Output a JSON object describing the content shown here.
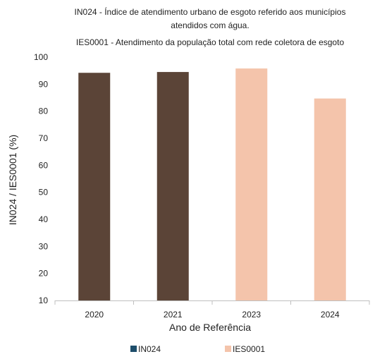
{
  "chart_data": {
    "type": "bar",
    "title_lines": [
      "IN024 - Índice de atendimento urbano de esgoto referido aos municípios",
      "atendidos com água."
    ],
    "subtitle": "IES0001 - Atendimento da população total com rede coletora de esgoto",
    "xlabel": "Ano de Referência",
    "ylabel": "IN024 / IES0001 (%)",
    "ylim": [
      10,
      100
    ],
    "yticks": [
      10,
      20,
      30,
      40,
      50,
      60,
      70,
      80,
      90,
      100
    ],
    "categories": [
      "2020",
      "2021",
      "2023",
      "2024"
    ],
    "values": [
      94.2,
      94.5,
      95.8,
      84.7
    ],
    "bar_series": [
      "IN024",
      "IN024",
      "IES0001",
      "IES0001"
    ],
    "series": [
      {
        "name": "IN024",
        "color": "#5b4437",
        "legend_color": "#1e4e6b"
      },
      {
        "name": "IES0001",
        "color": "#f4c4ab",
        "legend_color": "#f4c4ab"
      }
    ],
    "grid": false,
    "legend_position": "bottom"
  }
}
